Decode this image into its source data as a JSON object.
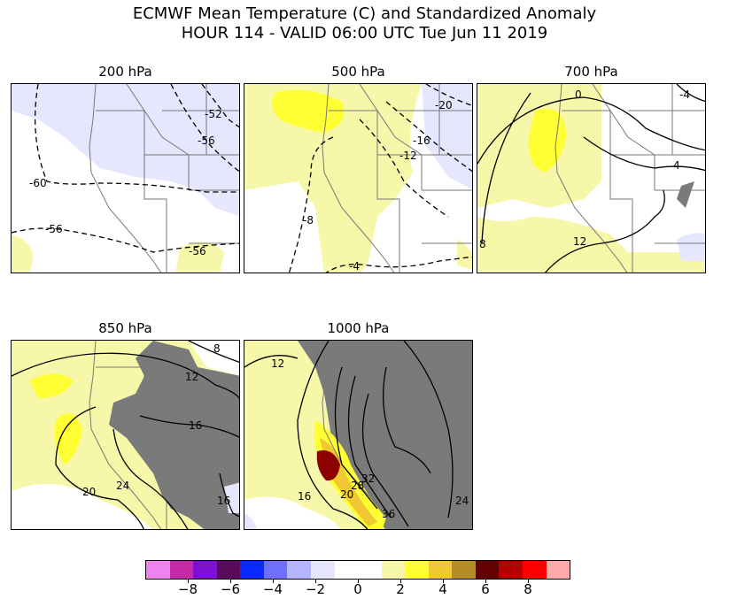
{
  "header": {
    "title_line1": "ECMWF Mean Temperature (C) and Standardized Anomaly",
    "title_line2": "HOUR 114 - VALID 06:00 UTC Tue Jun 11 2019"
  },
  "panels": [
    {
      "id": "p200",
      "label": "200 hPa",
      "contour_labels": [
        "-52",
        "-56",
        "-60",
        "-56",
        "-56"
      ]
    },
    {
      "id": "p500",
      "label": "500 hPa",
      "contour_labels": [
        "-20",
        "-16",
        "-12",
        "-8",
        "-4"
      ]
    },
    {
      "id": "p700",
      "label": "700 hPa",
      "contour_labels": [
        "0",
        "-4",
        "4",
        "8",
        "12"
      ]
    },
    {
      "id": "p850",
      "label": "850 hPa",
      "contour_labels": [
        "8",
        "12",
        "16",
        "24",
        "20",
        "16"
      ]
    },
    {
      "id": "p1000",
      "label": "1000 hPa",
      "contour_labels": [
        "12",
        "16",
        "20",
        "28",
        "32",
        "36",
        "24"
      ]
    }
  ],
  "colorbar": {
    "ticks": [
      "−8",
      "−6",
      "−4",
      "−2",
      "0",
      "2",
      "4",
      "6",
      "8"
    ],
    "colors": [
      "#ee82ee",
      "#c42aa8",
      "#7d10d4",
      "#5a0a5a",
      "#0a2aff",
      "#6f6fff",
      "#b4b4ff",
      "#e6e6ff",
      "#ffffff",
      "#ffffff",
      "#f7f7aa",
      "#ffff33",
      "#f0c832",
      "#b48c28",
      "#640000",
      "#b40000",
      "#ff0000",
      "#ffaaaa"
    ]
  },
  "colors": {
    "neg_anom": "#e6e6ff",
    "pos_anom_light": "#f7f7aa",
    "pos_anom": "#ffff33",
    "orange": "#f0c832",
    "dark_red": "#8c0000",
    "terrain_mask": "#7a7a7a"
  }
}
